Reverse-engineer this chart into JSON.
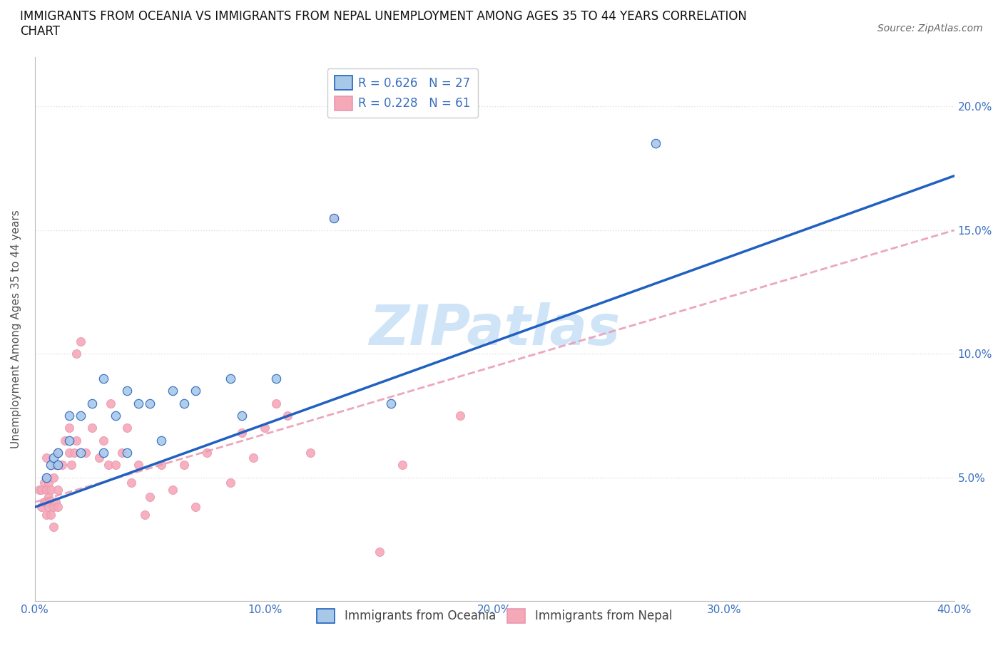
{
  "title": "IMMIGRANTS FROM OCEANIA VS IMMIGRANTS FROM NEPAL UNEMPLOYMENT AMONG AGES 35 TO 44 YEARS CORRELATION\nCHART",
  "source": "Source: ZipAtlas.com",
  "ylabel": "Unemployment Among Ages 35 to 44 years",
  "R_oceania": 0.626,
  "N_oceania": 27,
  "R_nepal": 0.228,
  "N_nepal": 61,
  "oceania_color": "#a8c8e8",
  "nepal_color": "#f5a8b8",
  "line_oceania_color": "#2060c0",
  "line_nepal_color": "#e898b0",
  "watermark": "ZIPatlas",
  "watermark_color": "#d0e4f8",
  "xmin": 0.0,
  "xmax": 0.4,
  "ymin": 0.0,
  "ymax": 0.22,
  "xticks": [
    0.0,
    0.1,
    0.2,
    0.3,
    0.4
  ],
  "xtick_labels": [
    "0.0%",
    "10.0%",
    "20.0%",
    "30.0%",
    "40.0%"
  ],
  "yticks": [
    0.0,
    0.05,
    0.1,
    0.15,
    0.2
  ],
  "ytick_labels": [
    "",
    "5.0%",
    "10.0%",
    "15.0%",
    "20.0%"
  ],
  "oceania_x": [
    0.005,
    0.007,
    0.008,
    0.01,
    0.01,
    0.015,
    0.015,
    0.02,
    0.02,
    0.025,
    0.03,
    0.03,
    0.035,
    0.04,
    0.04,
    0.045,
    0.05,
    0.055,
    0.06,
    0.065,
    0.07,
    0.085,
    0.09,
    0.105,
    0.13,
    0.155,
    0.27
  ],
  "oceania_y": [
    0.05,
    0.055,
    0.058,
    0.055,
    0.06,
    0.065,
    0.075,
    0.06,
    0.075,
    0.08,
    0.06,
    0.09,
    0.075,
    0.06,
    0.085,
    0.08,
    0.08,
    0.065,
    0.085,
    0.08,
    0.085,
    0.09,
    0.075,
    0.09,
    0.155,
    0.08,
    0.185
  ],
  "nepal_x": [
    0.002,
    0.003,
    0.003,
    0.004,
    0.004,
    0.005,
    0.005,
    0.005,
    0.005,
    0.005,
    0.006,
    0.006,
    0.006,
    0.007,
    0.007,
    0.008,
    0.008,
    0.008,
    0.009,
    0.009,
    0.01,
    0.01,
    0.01,
    0.012,
    0.013,
    0.015,
    0.015,
    0.016,
    0.017,
    0.018,
    0.018,
    0.02,
    0.022,
    0.025,
    0.028,
    0.03,
    0.032,
    0.033,
    0.035,
    0.038,
    0.04,
    0.042,
    0.045,
    0.048,
    0.05,
    0.055,
    0.06,
    0.065,
    0.07,
    0.075,
    0.085,
    0.09,
    0.095,
    0.1,
    0.105,
    0.11,
    0.12,
    0.13,
    0.15,
    0.16,
    0.185
  ],
  "nepal_y": [
    0.045,
    0.038,
    0.045,
    0.04,
    0.048,
    0.035,
    0.04,
    0.045,
    0.05,
    0.058,
    0.038,
    0.042,
    0.048,
    0.035,
    0.045,
    0.03,
    0.038,
    0.05,
    0.04,
    0.055,
    0.038,
    0.045,
    0.06,
    0.055,
    0.065,
    0.06,
    0.07,
    0.055,
    0.06,
    0.065,
    0.1,
    0.105,
    0.06,
    0.07,
    0.058,
    0.065,
    0.055,
    0.08,
    0.055,
    0.06,
    0.07,
    0.048,
    0.055,
    0.035,
    0.042,
    0.055,
    0.045,
    0.055,
    0.038,
    0.06,
    0.048,
    0.068,
    0.058,
    0.07,
    0.08,
    0.075,
    0.06,
    0.155,
    0.02,
    0.055,
    0.075
  ],
  "line_oceania_x0": 0.0,
  "line_oceania_y0": 0.038,
  "line_oceania_x1": 0.4,
  "line_oceania_y1": 0.172,
  "line_nepal_x0": 0.0,
  "line_nepal_y0": 0.04,
  "line_nepal_x1": 0.4,
  "line_nepal_y1": 0.15,
  "background_color": "#ffffff",
  "grid_color": "#e0e0e0"
}
